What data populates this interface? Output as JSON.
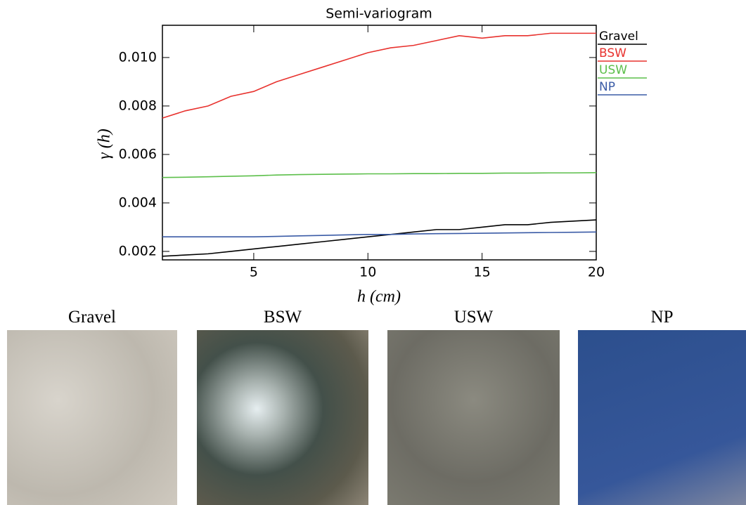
{
  "chart_data": {
    "type": "line",
    "title": "Semi-variogram",
    "x_label": "h (cm)",
    "y_label": "γ (h)",
    "x": [
      1,
      2,
      3,
      4,
      5,
      6,
      7,
      8,
      9,
      10,
      11,
      12,
      13,
      14,
      15,
      16,
      17,
      18,
      19,
      20
    ],
    "series": [
      {
        "name": "Gravel",
        "color": "#000000",
        "values": [
          0.0018,
          0.00185,
          0.0019,
          0.002,
          0.0021,
          0.0022,
          0.0023,
          0.0024,
          0.0025,
          0.0026,
          0.0027,
          0.0028,
          0.0029,
          0.0029,
          0.003,
          0.0031,
          0.0031,
          0.0032,
          0.00325,
          0.0033
        ]
      },
      {
        "name": "BSW",
        "color": "#e8322e",
        "values": [
          0.0075,
          0.0078,
          0.008,
          0.0084,
          0.0086,
          0.009,
          0.0093,
          0.0096,
          0.0099,
          0.0102,
          0.0104,
          0.0105,
          0.0107,
          0.0109,
          0.0108,
          0.0109,
          0.0109,
          0.011,
          0.011,
          0.011
        ]
      },
      {
        "name": "USW",
        "color": "#5cbf4a",
        "values": [
          0.00505,
          0.00506,
          0.00508,
          0.0051,
          0.00512,
          0.00515,
          0.00517,
          0.00518,
          0.00519,
          0.0052,
          0.0052,
          0.00521,
          0.00521,
          0.00522,
          0.00522,
          0.00523,
          0.00523,
          0.00524,
          0.00524,
          0.00525
        ]
      },
      {
        "name": "NP",
        "color": "#3a5ba6",
        "values": [
          0.0026,
          0.0026,
          0.0026,
          0.0026,
          0.0026,
          0.00262,
          0.00264,
          0.00266,
          0.00268,
          0.0027,
          0.0027,
          0.00272,
          0.00273,
          0.00274,
          0.00275,
          0.00276,
          0.00277,
          0.00278,
          0.00279,
          0.0028
        ]
      }
    ],
    "xlim": [
      1,
      20
    ],
    "xticks": [
      5,
      10,
      15,
      20
    ],
    "ylim": [
      0.00165,
      0.01133
    ],
    "yticks": [
      0.002,
      0.004,
      0.006,
      0.008,
      {
        "value": 0.01,
        "label": "0.010"
      }
    ],
    "legend": "right"
  },
  "image_captions": [
    "Gravel",
    "BSW",
    "USW",
    "NP"
  ]
}
